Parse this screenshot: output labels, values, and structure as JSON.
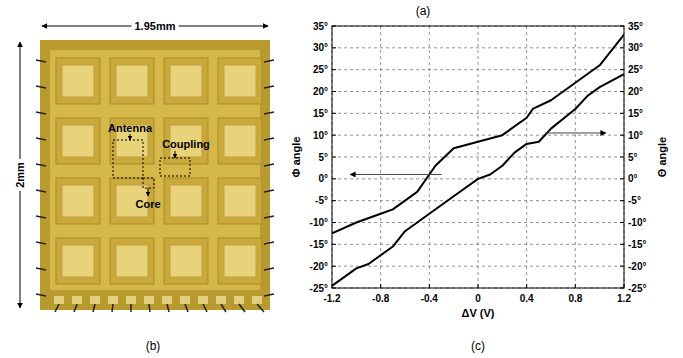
{
  "chart_data": {
    "type": "line",
    "x_label": "ΔV (V)",
    "y_label": "Φ angle",
    "y2_label": "Θ angle",
    "xlim": [
      -1.2,
      1.2
    ],
    "xticks": [
      -1.2,
      -0.8,
      -0.4,
      0,
      0.4,
      0.8,
      1.2
    ],
    "ylim": [
      -25,
      35
    ],
    "yticks": [
      {
        "value": -25,
        "label": "-25°"
      },
      {
        "value": -20,
        "label": "-20°"
      },
      {
        "value": -15,
        "label": "-15°"
      },
      {
        "value": -10,
        "label": "-10°"
      },
      {
        "value": -5,
        "label": "-5°"
      },
      {
        "value": 0,
        "label": "0°"
      },
      {
        "value": 5,
        "label": "5°"
      },
      {
        "value": 10,
        "label": "10°"
      },
      {
        "value": 15,
        "label": "15°"
      },
      {
        "value": 20,
        "label": "20°"
      },
      {
        "value": 25,
        "label": "25°"
      },
      {
        "value": 30,
        "label": "30°"
      },
      {
        "value": 35,
        "label": "35°"
      }
    ],
    "y2lim": [
      -25,
      35
    ],
    "y2ticks": [
      {
        "value": -25,
        "label": "-25°"
      },
      {
        "value": -20,
        "label": "-20°"
      },
      {
        "value": -15,
        "label": "-15°"
      },
      {
        "value": -10,
        "label": "-10°"
      },
      {
        "value": -5,
        "label": "-5°"
      },
      {
        "value": 0,
        "label": "0°"
      },
      {
        "value": 5,
        "label": "5°"
      },
      {
        "value": 10,
        "label": "10°"
      },
      {
        "value": 15,
        "label": "15°"
      },
      {
        "value": 20,
        "label": "20°"
      },
      {
        "value": 25,
        "label": "25°"
      },
      {
        "value": 30,
        "label": "30°"
      },
      {
        "value": 35,
        "label": "35°"
      }
    ],
    "grid": true,
    "series": [
      {
        "color": "#000000",
        "line_style": "solid",
        "x": [
          -1.2,
          -1.0,
          -0.8,
          -0.7,
          -0.6,
          -0.5,
          -0.4,
          -0.35,
          -0.2,
          0,
          0.2,
          0.4,
          0.45,
          0.6,
          0.8,
          1.0,
          1.2
        ],
        "values": [
          -12.5,
          -10,
          -8,
          -7,
          -5,
          -3,
          1,
          3,
          7,
          8.5,
          10,
          14,
          16,
          18,
          22,
          26,
          33
        ]
      },
      {
        "color": "#000000",
        "line_style": "solid",
        "axis": "y2",
        "x": [
          -1.2,
          -1.0,
          -0.9,
          -0.7,
          -0.6,
          -0.4,
          -0.2,
          0,
          0.1,
          0.2,
          0.3,
          0.4,
          0.5,
          0.6,
          0.8,
          0.9,
          1.0,
          1.2
        ],
        "values": [
          -24.5,
          -20.5,
          -19.5,
          -15.5,
          -12,
          -8,
          -4,
          0,
          1,
          3,
          6,
          8,
          8.5,
          11.5,
          16,
          19,
          21,
          24
        ]
      }
    ]
  },
  "chip": {
    "width_label": "1.95mm",
    "height_label": "2mm",
    "antenna": "Antenna",
    "coupling": "Coupling",
    "core": "Core"
  },
  "panel_labels": [
    "(a)",
    "(b)",
    "(c)"
  ]
}
